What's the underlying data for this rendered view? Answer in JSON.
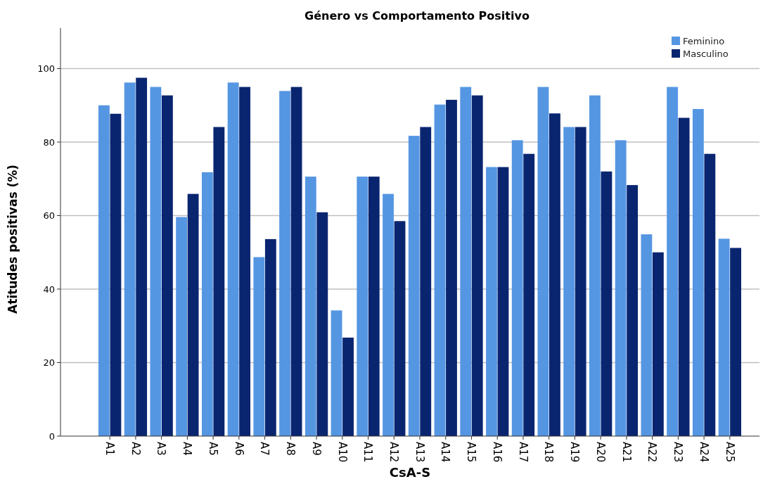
{
  "chart_data": {
    "type": "bar",
    "title": "Género vs Comportamento Positivo",
    "xlabel": "CsA-S",
    "ylabel": "Atitudes positivas  (%)",
    "categories": [
      "A1",
      "A2",
      "A3",
      "A4",
      "A5",
      "A6",
      "A7",
      "A8",
      "A9",
      "A10",
      "A11",
      "A12",
      "A13",
      "A14",
      "A15",
      "A16",
      "A17",
      "A18",
      "A19",
      "A20",
      "A21",
      "A22",
      "A23",
      "A24",
      "A25"
    ],
    "series": [
      {
        "name": "Feminino",
        "color": "#5596e3",
        "values": [
          90.0,
          96.2,
          95.0,
          59.6,
          71.8,
          96.2,
          48.7,
          93.9,
          70.6,
          34.2,
          70.6,
          65.9,
          81.7,
          90.2,
          95.0,
          73.2,
          80.5,
          95.0,
          84.1,
          92.7,
          80.5,
          54.9,
          95.0,
          89.0,
          53.7
        ]
      },
      {
        "name": "Masculino",
        "color": "#0a2570",
        "values": [
          87.7,
          97.5,
          92.7,
          65.9,
          84.1,
          95.0,
          53.6,
          95.0,
          60.9,
          26.8,
          70.6,
          58.5,
          84.1,
          91.5,
          92.7,
          73.2,
          76.8,
          87.8,
          84.1,
          72.0,
          68.3,
          50.0,
          86.6,
          76.8,
          51.2
        ]
      }
    ],
    "ylim": [
      0,
      111
    ],
    "yticks": [
      0,
      20,
      40,
      60,
      80,
      100
    ],
    "grid": "y",
    "legend": "top right"
  }
}
